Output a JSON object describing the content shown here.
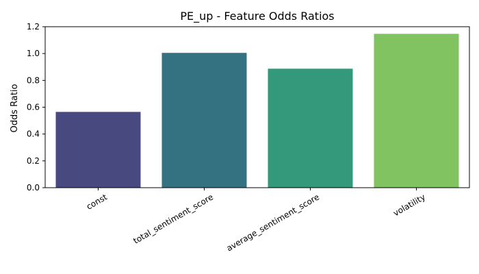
{
  "chart_data": {
    "type": "bar",
    "title": "PE_up - Feature Odds Ratios",
    "xlabel": "",
    "ylabel": "Odds Ratio",
    "categories": [
      "const",
      "total_sentiment_score",
      "average_sentiment_score",
      "volatility"
    ],
    "values": [
      0.565,
      1.005,
      0.887,
      1.147
    ],
    "colors": [
      "#48497f",
      "#357281",
      "#33997a",
      "#81c261"
    ],
    "ylim": [
      0,
      1.2
    ],
    "yticks": [
      0.0,
      0.2,
      0.4,
      0.6,
      0.8,
      1.0,
      1.2
    ],
    "ytick_labels": [
      "0.0",
      "0.2",
      "0.4",
      "0.6",
      "0.8",
      "1.0",
      "1.2"
    ],
    "xtick_rotation_deg": 30,
    "grid": false,
    "legend": false
  }
}
